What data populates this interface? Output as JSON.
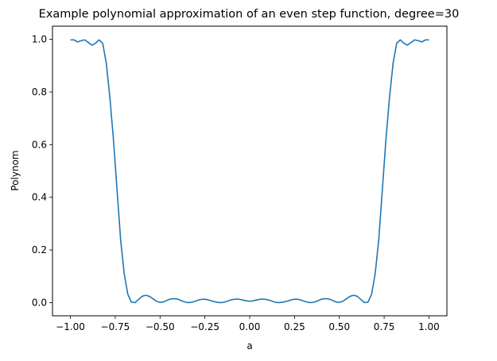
{
  "chart_data": {
    "type": "line",
    "title": "Example polynomial approximation of an even step function, degree=30",
    "xlabel": "a",
    "ylabel": "Polynom",
    "xlim": [
      -1.1,
      1.1
    ],
    "ylim": [
      -0.05,
      1.05
    ],
    "xticks": [
      -1.0,
      -0.75,
      -0.5,
      -0.25,
      0.0,
      0.25,
      0.5,
      0.75,
      1.0
    ],
    "xtick_labels": [
      "−1.00",
      "−0.75",
      "−0.50",
      "−0.25",
      "0.00",
      "0.25",
      "0.50",
      "0.75",
      "1.00"
    ],
    "yticks": [
      0.0,
      0.2,
      0.4,
      0.6,
      0.8,
      1.0
    ],
    "ytick_labels": [
      "0.0",
      "0.2",
      "0.4",
      "0.6",
      "0.8",
      "1.0"
    ],
    "grid": false,
    "line_color": "#1f77b4",
    "series": [
      {
        "x": [
          -1.0,
          -0.98,
          -0.96,
          -0.94,
          -0.92,
          -0.9,
          -0.88,
          -0.86,
          -0.84,
          -0.82,
          -0.8,
          -0.78,
          -0.76,
          -0.74,
          -0.72,
          -0.7,
          -0.68,
          -0.66,
          -0.64,
          -0.62,
          -0.6,
          -0.58,
          -0.56,
          -0.54,
          -0.52,
          -0.5,
          -0.48,
          -0.46,
          -0.44,
          -0.42,
          -0.4,
          -0.38,
          -0.36,
          -0.34,
          -0.32,
          -0.3,
          -0.28,
          -0.26,
          -0.24,
          -0.22,
          -0.2,
          -0.18,
          -0.16,
          -0.14,
          -0.12,
          -0.1,
          -0.08,
          -0.06,
          -0.04,
          -0.02,
          0.0,
          0.02,
          0.04,
          0.06,
          0.08,
          0.1,
          0.12,
          0.14,
          0.16,
          0.18,
          0.2,
          0.22,
          0.24,
          0.26,
          0.28,
          0.3,
          0.32,
          0.34,
          0.36,
          0.38,
          0.4,
          0.42,
          0.44,
          0.46,
          0.48,
          0.5,
          0.52,
          0.54,
          0.56,
          0.58,
          0.6,
          0.62,
          0.64,
          0.66,
          0.68,
          0.7,
          0.72,
          0.74,
          0.76,
          0.78,
          0.8,
          0.82,
          0.84,
          0.86,
          0.88,
          0.9,
          0.92,
          0.94,
          0.96,
          0.98,
          1.0
        ],
        "y": [
          0.998,
          0.998,
          0.99,
          0.995,
          0.998,
          0.988,
          0.978,
          0.985,
          0.998,
          0.985,
          0.91,
          0.78,
          0.62,
          0.43,
          0.24,
          0.11,
          0.032,
          0.002,
          0.0,
          0.012,
          0.024,
          0.028,
          0.024,
          0.015,
          0.005,
          0.001,
          0.003,
          0.009,
          0.014,
          0.015,
          0.013,
          0.007,
          0.002,
          0.0,
          0.002,
          0.006,
          0.011,
          0.013,
          0.012,
          0.008,
          0.004,
          0.001,
          0.0,
          0.002,
          0.007,
          0.011,
          0.013,
          0.013,
          0.01,
          0.007,
          0.005,
          0.007,
          0.01,
          0.013,
          0.013,
          0.011,
          0.007,
          0.002,
          0.0,
          0.001,
          0.004,
          0.008,
          0.012,
          0.013,
          0.011,
          0.006,
          0.002,
          0.0,
          0.002,
          0.007,
          0.013,
          0.015,
          0.014,
          0.009,
          0.003,
          0.001,
          0.005,
          0.015,
          0.024,
          0.028,
          0.024,
          0.012,
          0.0,
          0.002,
          0.032,
          0.11,
          0.24,
          0.43,
          0.62,
          0.78,
          0.91,
          0.985,
          0.998,
          0.985,
          0.978,
          0.988,
          0.998,
          0.995,
          0.99,
          0.998,
          0.998
        ]
      }
    ]
  }
}
